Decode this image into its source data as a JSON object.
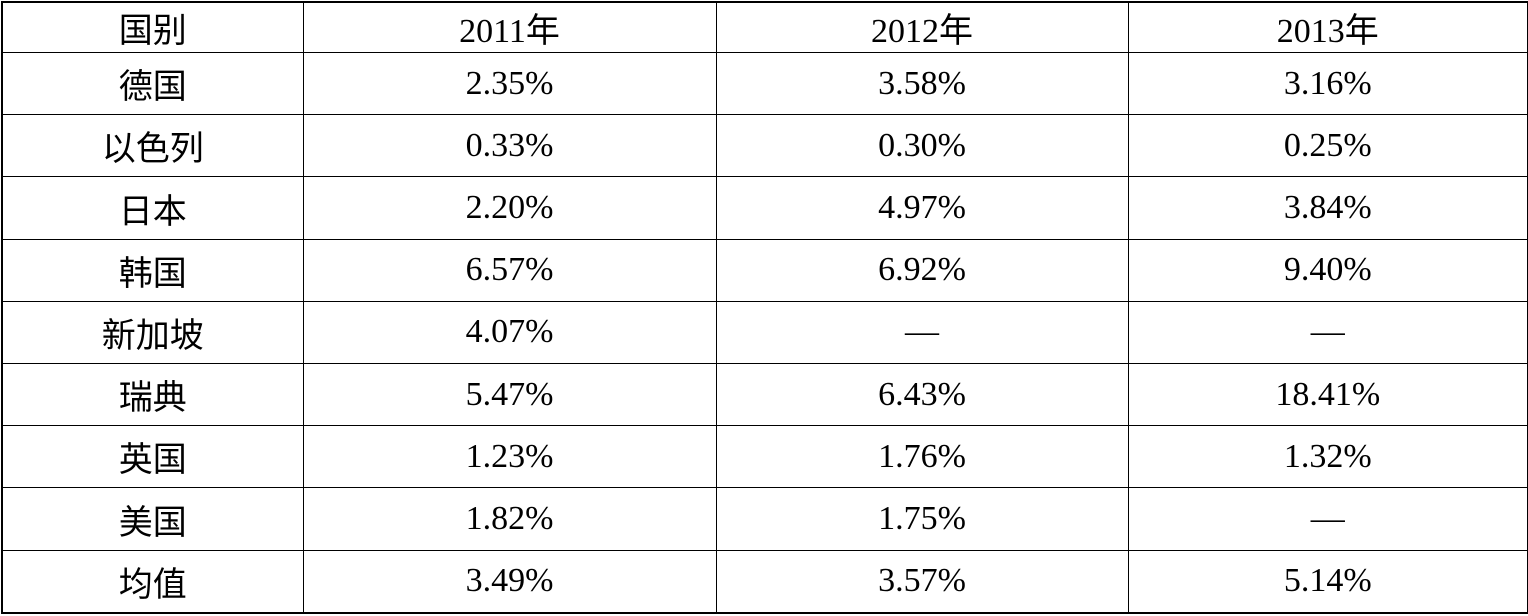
{
  "table": {
    "header": [
      "国别",
      "2011年",
      "2012年",
      "2013年"
    ],
    "rows": [
      [
        "德国",
        "2.35%",
        "3.58%",
        "3.16%"
      ],
      [
        "以色列",
        "0.33%",
        "0.30%",
        "0.25%"
      ],
      [
        "日本",
        "2.20%",
        "4.97%",
        "3.84%"
      ],
      [
        "韩国",
        "6.57%",
        "6.92%",
        "9.40%"
      ],
      [
        "新加坡",
        "4.07%",
        "—",
        "—"
      ],
      [
        "瑞典",
        "5.47%",
        "6.43%",
        "18.41%"
      ],
      [
        "英国",
        "1.23%",
        "1.76%",
        "1.32%"
      ],
      [
        "美国",
        "1.82%",
        "1.75%",
        "—"
      ],
      [
        "均值",
        "3.49%",
        "3.57%",
        "5.14%"
      ]
    ]
  }
}
